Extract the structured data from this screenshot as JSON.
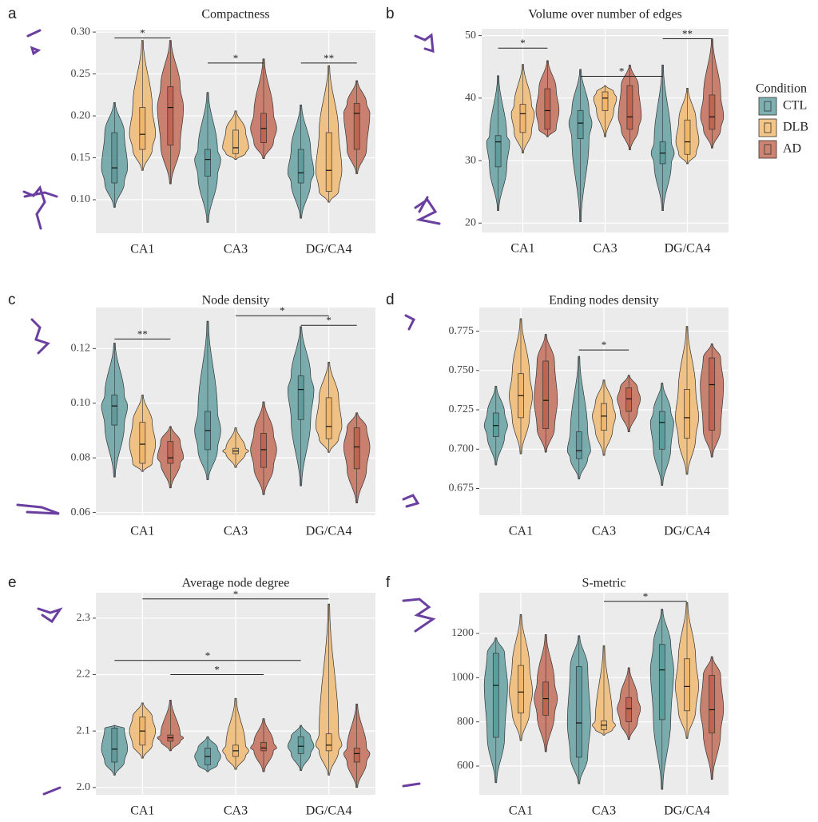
{
  "chart_data": [
    {
      "type": "violin",
      "panel": "a",
      "title": "Compactness",
      "categories": [
        "CA1",
        "CA3",
        "DG/CA4"
      ],
      "ylim": [
        0.06,
        0.302
      ],
      "yticks": [
        {
          "value": 0.1,
          "label": "0.10"
        },
        0.15,
        {
          "value": 0.2,
          "label": "0.20"
        },
        0.25,
        {
          "value": 0.3,
          "label": "0.30"
        }
      ],
      "grid": true,
      "series": [
        {
          "min": [
            0.091,
            0.073,
            0.078
          ],
          "q1": [
            0.12,
            0.128,
            0.12
          ],
          "median": [
            0.138,
            0.148,
            0.132
          ],
          "q3": [
            0.18,
            0.16,
            0.16
          ],
          "max": [
            0.216,
            0.228,
            0.213
          ]
        },
        {
          "min": [
            0.135,
            0.148,
            0.097
          ],
          "q1": [
            0.16,
            0.155,
            0.11
          ],
          "median": [
            0.178,
            0.162,
            0.135
          ],
          "q3": [
            0.21,
            0.183,
            0.18
          ],
          "max": [
            0.29,
            0.206,
            0.26
          ]
        },
        {
          "min": [
            0.119,
            0.149,
            0.131
          ],
          "q1": [
            0.165,
            0.168,
            0.16
          ],
          "median": [
            0.21,
            0.185,
            0.203
          ],
          "q3": [
            0.235,
            0.203,
            0.215
          ],
          "max": [
            0.29,
            0.268,
            0.242
          ]
        }
      ],
      "brackets": [
        {
          "from": [
            0,
            0
          ],
          "to": [
            0,
            2
          ],
          "y": 0.293,
          "label": "*"
        },
        {
          "from": [
            1,
            0
          ],
          "to": [
            1,
            2
          ],
          "y": 0.263,
          "label": "*"
        },
        {
          "from": [
            2,
            0
          ],
          "to": [
            2,
            2
          ],
          "y": 0.263,
          "label": "**"
        }
      ]
    },
    {
      "type": "violin",
      "panel": "b",
      "title": "Volume over number of edges",
      "categories": [
        "CA1",
        "CA3",
        "DG/CA4"
      ],
      "ylim": [
        18.5,
        51.1
      ],
      "yticks": [
        20,
        30,
        40,
        50
      ],
      "grid": true,
      "series": [
        {
          "min": [
            22,
            20.2,
            22
          ],
          "q1": [
            29,
            33.5,
            29.5
          ],
          "median": [
            33,
            36,
            31.2
          ],
          "q3": [
            34,
            38,
            33
          ],
          "max": [
            43.6,
            44.6,
            45.3
          ]
        },
        {
          "min": [
            31.2,
            33.8,
            29.5
          ],
          "q1": [
            34.5,
            38,
            31
          ],
          "median": [
            37.5,
            40,
            33
          ],
          "q3": [
            39,
            41,
            36.5
          ],
          "max": [
            45.4,
            42,
            41.6
          ]
        },
        {
          "min": [
            33.8,
            31.7,
            32
          ],
          "q1": [
            35,
            35,
            35
          ],
          "median": [
            38,
            37,
            37
          ],
          "q3": [
            41.5,
            42,
            40.5
          ],
          "max": [
            46,
            45.3,
            49.5
          ]
        }
      ],
      "brackets": [
        {
          "from": [
            0,
            0
          ],
          "to": [
            0,
            2
          ],
          "y": 48,
          "label": "*"
        },
        {
          "from": [
            1,
            0
          ],
          "to": [
            2,
            0
          ],
          "y": 43.5,
          "label": "*"
        },
        {
          "from": [
            2,
            0
          ],
          "to": [
            2,
            2
          ],
          "y": 49.5,
          "label": "**"
        }
      ]
    },
    {
      "type": "violin",
      "panel": "c",
      "title": "Node density",
      "categories": [
        "CA1",
        "CA3",
        "DG/CA4"
      ],
      "ylim": [
        0.059,
        0.135
      ],
      "yticks": [
        0.06,
        0.08,
        {
          "value": 0.1,
          "label": "0.10"
        },
        0.12
      ],
      "grid": true,
      "series": [
        {
          "min": [
            0.073,
            0.072,
            0.0698
          ],
          "q1": [
            0.092,
            0.083,
            0.094
          ],
          "median": [
            0.099,
            0.09,
            0.105
          ],
          "q3": [
            0.103,
            0.097,
            0.11
          ],
          "max": [
            0.122,
            0.13,
            0.128
          ]
        },
        {
          "min": [
            0.075,
            0.0765,
            0.082
          ],
          "q1": [
            0.078,
            0.0815,
            0.087
          ],
          "median": [
            0.085,
            0.0825,
            0.0915
          ],
          "q3": [
            0.093,
            0.0835,
            0.102
          ],
          "max": [
            0.103,
            0.091,
            0.115
          ]
        },
        {
          "min": [
            0.069,
            0.0665,
            0.0635
          ],
          "q1": [
            0.078,
            0.0765,
            0.076
          ],
          "median": [
            0.08,
            0.083,
            0.084
          ],
          "q3": [
            0.086,
            0.089,
            0.091
          ],
          "max": [
            0.0915,
            0.1005,
            0.0965
          ]
        }
      ],
      "brackets": [
        {
          "from": [
            0,
            0
          ],
          "to": [
            0,
            2
          ],
          "y": 0.1235,
          "label": "**"
        },
        {
          "from": [
            1,
            1
          ],
          "to": [
            2,
            1
          ],
          "y": 0.132,
          "label": "*"
        },
        {
          "from": [
            2,
            0
          ],
          "to": [
            2,
            2
          ],
          "y": 0.1285,
          "label": "*"
        }
      ]
    },
    {
      "type": "violin",
      "panel": "d",
      "title": "Ending nodes density",
      "categories": [
        "CA1",
        "CA3",
        "DG/CA4"
      ],
      "ylim": [
        0.658,
        0.79
      ],
      "yticks": [
        0.675,
        {
          "value": 0.7,
          "label": "0.700"
        },
        0.725,
        {
          "value": 0.75,
          "label": "0.750"
        },
        0.775
      ],
      "grid": true,
      "series": [
        {
          "min": [
            0.69,
            0.681,
            0.677
          ],
          "q1": [
            0.708,
            0.694,
            0.7
          ],
          "median": [
            0.715,
            0.699,
            0.717
          ],
          "q3": [
            0.723,
            0.711,
            0.724
          ],
          "max": [
            0.74,
            0.759,
            0.742
          ]
        },
        {
          "min": [
            0.697,
            0.696,
            0.684
          ],
          "q1": [
            0.72,
            0.712,
            0.707
          ],
          "median": [
            0.734,
            0.721,
            0.72
          ],
          "q3": [
            0.748,
            0.729,
            0.738
          ],
          "max": [
            0.783,
            0.744,
            0.778
          ]
        },
        {
          "min": [
            0.698,
            0.711,
            0.695
          ],
          "q1": [
            0.713,
            0.724,
            0.712
          ],
          "median": [
            0.731,
            0.732,
            0.741
          ],
          "q3": [
            0.756,
            0.739,
            0.758
          ],
          "max": [
            0.773,
            0.747,
            0.767
          ]
        }
      ],
      "brackets": [
        {
          "from": [
            1,
            0
          ],
          "to": [
            1,
            2
          ],
          "y": 0.763,
          "label": "*"
        }
      ]
    },
    {
      "type": "violin",
      "panel": "e",
      "title": "Average node degree",
      "categories": [
        "CA1",
        "CA3",
        "DG/CA4"
      ],
      "ylim": [
        1.987,
        2.345
      ],
      "yticks": [
        {
          "value": 2,
          "label": "2.0"
        },
        2.1,
        2.2,
        2.3
      ],
      "grid": true,
      "series": [
        {
          "min": [
            2.022,
            2.028,
            2.03
          ],
          "q1": [
            2.045,
            2.04,
            2.06
          ],
          "median": [
            2.068,
            2.055,
            2.073
          ],
          "q3": [
            2.105,
            2.07,
            2.09
          ],
          "max": [
            2.11,
            2.09,
            2.11
          ]
        },
        {
          "min": [
            2.052,
            2.032,
            2.022
          ],
          "q1": [
            2.075,
            2.055,
            2.065
          ],
          "median": [
            2.1,
            2.065,
            2.075
          ],
          "q3": [
            2.125,
            2.075,
            2.095
          ],
          "max": [
            2.15,
            2.158,
            2.325
          ]
        },
        {
          "min": [
            2.065,
            2.028,
            2
          ],
          "q1": [
            2.082,
            2.065,
            2.045
          ],
          "median": [
            2.088,
            2.07,
            2.06
          ],
          "q3": [
            2.093,
            2.08,
            2.07
          ],
          "max": [
            2.155,
            2.122,
            2.148
          ]
        }
      ],
      "brackets": [
        {
          "from": [
            0,
            1
          ],
          "to": [
            2,
            1
          ],
          "y": 2.334,
          "label": "*"
        },
        {
          "from": [
            0,
            0
          ],
          "to": [
            2,
            0
          ],
          "y": 2.225,
          "label": "*"
        },
        {
          "from": [
            0,
            2
          ],
          "to": [
            1,
            2
          ],
          "y": 2.2,
          "label": "*"
        }
      ]
    },
    {
      "type": "violin",
      "panel": "f",
      "title": "S-metric",
      "categories": [
        "CA1",
        "CA3",
        "DG/CA4"
      ],
      "ylim": [
        470,
        1384
      ],
      "yticks": [
        600,
        800,
        1000,
        1200
      ],
      "grid": true,
      "series": [
        {
          "min": [
            525,
            520,
            495
          ],
          "q1": [
            730,
            640,
            810
          ],
          "median": [
            965,
            795,
            1035
          ],
          "q3": [
            1110,
            1050,
            1150
          ],
          "max": [
            1180,
            1190,
            1310
          ]
        },
        {
          "min": [
            715,
            740,
            725
          ],
          "q1": [
            840,
            765,
            850
          ],
          "median": [
            935,
            785,
            960
          ],
          "q3": [
            1055,
            805,
            1085
          ],
          "max": [
            1285,
            1145,
            1340
          ]
        },
        {
          "min": [
            665,
            720,
            540
          ],
          "q1": [
            830,
            800,
            750
          ],
          "median": [
            905,
            860,
            855
          ],
          "q3": [
            980,
            910,
            1010
          ],
          "max": [
            1195,
            1045,
            1095
          ]
        }
      ],
      "brackets": [
        {
          "from": [
            1,
            1
          ],
          "to": [
            2,
            1
          ],
          "y": 1345,
          "label": "*"
        }
      ]
    }
  ],
  "legend": {
    "title": "Condition",
    "series": [
      {
        "name": "CTL",
        "color": "#5f9c9d"
      },
      {
        "name": "DLB",
        "color": "#f0b76c"
      },
      {
        "name": "AD",
        "color": "#c0654f"
      }
    ]
  }
}
